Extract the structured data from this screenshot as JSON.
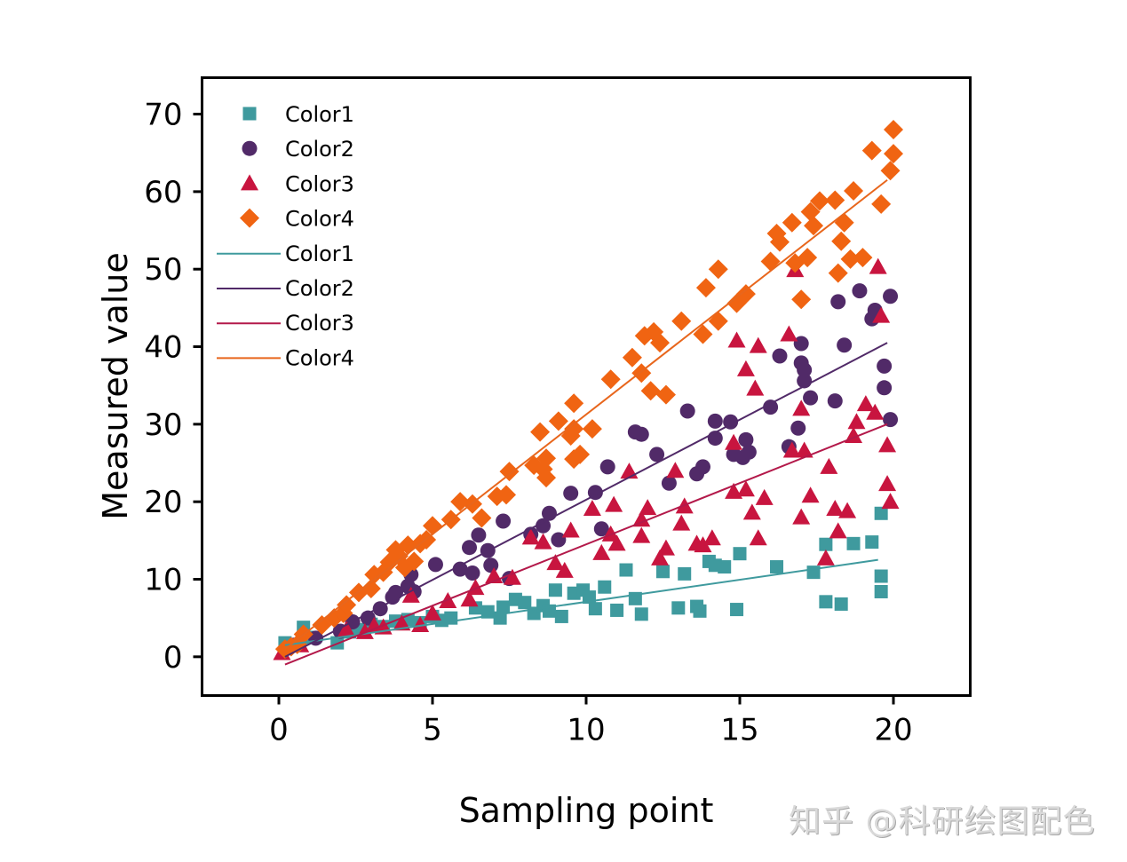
{
  "chart_data": {
    "type": "scatter",
    "title": "",
    "xlabel": "Sampling point",
    "ylabel": "Measured value",
    "xlim": [
      -2.5,
      22.5
    ],
    "ylim": [
      -5,
      74.7
    ],
    "xticks": [
      0,
      5,
      10,
      15,
      20
    ],
    "yticks": [
      0,
      10,
      20,
      30,
      40,
      50,
      60,
      70
    ],
    "grid": false,
    "legend_position": "upper left",
    "legend": [
      {
        "label": "Color1",
        "kind": "marker",
        "marker": "square",
        "color": "#3f9a9e"
      },
      {
        "label": "Color2",
        "kind": "marker",
        "marker": "circle",
        "color": "#512a68"
      },
      {
        "label": "Color3",
        "kind": "marker",
        "marker": "triangle",
        "color": "#c8153f"
      },
      {
        "label": "Color4",
        "kind": "marker",
        "marker": "diamond",
        "color": "#f06412"
      },
      {
        "label": "Color1",
        "kind": "line",
        "color": "#3f9a9e"
      },
      {
        "label": "Color2",
        "kind": "line",
        "color": "#512a68"
      },
      {
        "label": "Color3",
        "kind": "line",
        "color": "#b3194a"
      },
      {
        "label": "Color4",
        "kind": "line",
        "color": "#e8661c"
      }
    ],
    "series": [
      {
        "name": "Color1",
        "marker": "square",
        "color": "#3f9a9e",
        "fit": {
          "x": [
            0.2,
            19.5
          ],
          "y": [
            1.5,
            12.5
          ]
        },
        "points": [
          [
            0.2,
            1.8
          ],
          [
            0.8,
            3.8
          ],
          [
            1.0,
            2.5
          ],
          [
            1.9,
            1.8
          ],
          [
            2.3,
            3.2
          ],
          [
            2.6,
            3.5
          ],
          [
            3.0,
            4.2
          ],
          [
            3.4,
            3.9
          ],
          [
            3.8,
            4.6
          ],
          [
            4.2,
            4.8
          ],
          [
            4.6,
            4.4
          ],
          [
            5.0,
            5.2
          ],
          [
            5.3,
            4.7
          ],
          [
            5.6,
            5.0
          ],
          [
            6.4,
            6.3
          ],
          [
            6.8,
            5.8
          ],
          [
            7.2,
            5.0
          ],
          [
            7.3,
            6.4
          ],
          [
            7.7,
            7.4
          ],
          [
            8.0,
            7.0
          ],
          [
            8.3,
            5.6
          ],
          [
            8.6,
            6.6
          ],
          [
            8.8,
            5.9
          ],
          [
            9.0,
            8.6
          ],
          [
            9.2,
            5.2
          ],
          [
            9.6,
            8.2
          ],
          [
            9.9,
            8.6
          ],
          [
            10.1,
            7.7
          ],
          [
            10.3,
            6.2
          ],
          [
            10.6,
            9.0
          ],
          [
            11.0,
            6.0
          ],
          [
            11.3,
            11.2
          ],
          [
            11.6,
            7.5
          ],
          [
            11.8,
            5.5
          ],
          [
            12.5,
            11.0
          ],
          [
            13.0,
            6.3
          ],
          [
            13.2,
            10.7
          ],
          [
            13.6,
            6.5
          ],
          [
            13.7,
            5.9
          ],
          [
            14.0,
            12.3
          ],
          [
            14.2,
            11.8
          ],
          [
            14.5,
            11.6
          ],
          [
            14.9,
            6.1
          ],
          [
            15.0,
            13.3
          ],
          [
            16.2,
            11.6
          ],
          [
            17.4,
            10.9
          ],
          [
            17.8,
            14.5
          ],
          [
            17.8,
            7.1
          ],
          [
            18.3,
            6.8
          ],
          [
            18.7,
            14.6
          ],
          [
            19.3,
            14.8
          ],
          [
            19.6,
            18.5
          ],
          [
            19.6,
            10.4
          ],
          [
            19.6,
            8.4
          ]
        ]
      },
      {
        "name": "Color2",
        "marker": "circle",
        "color": "#512a68",
        "fit": {
          "x": [
            0.2,
            19.8
          ],
          "y": [
            0.0,
            40.5
          ]
        },
        "points": [
          [
            0.5,
            1.5
          ],
          [
            1.2,
            2.4
          ],
          [
            2.0,
            3.3
          ],
          [
            2.4,
            4.5
          ],
          [
            2.9,
            5.0
          ],
          [
            3.3,
            6.2
          ],
          [
            3.7,
            7.7
          ],
          [
            3.8,
            8.3
          ],
          [
            4.2,
            9.1
          ],
          [
            4.3,
            10.6
          ],
          [
            4.4,
            8.4
          ],
          [
            5.1,
            11.9
          ],
          [
            5.9,
            11.3
          ],
          [
            6.2,
            14.1
          ],
          [
            6.3,
            10.8
          ],
          [
            6.5,
            15.7
          ],
          [
            6.8,
            13.7
          ],
          [
            6.9,
            11.8
          ],
          [
            7.3,
            17.5
          ],
          [
            7.5,
            10.1
          ],
          [
            8.2,
            15.8
          ],
          [
            8.6,
            16.9
          ],
          [
            8.8,
            18.5
          ],
          [
            9.1,
            15.1
          ],
          [
            9.5,
            21.1
          ],
          [
            10.3,
            21.2
          ],
          [
            10.5,
            16.5
          ],
          [
            10.7,
            24.5
          ],
          [
            11.6,
            29.0
          ],
          [
            11.8,
            28.7
          ],
          [
            12.3,
            26.1
          ],
          [
            12.7,
            22.4
          ],
          [
            13.3,
            31.7
          ],
          [
            13.6,
            23.6
          ],
          [
            13.8,
            24.5
          ],
          [
            14.2,
            28.2
          ],
          [
            14.2,
            30.4
          ],
          [
            14.7,
            30.3
          ],
          [
            14.8,
            26.1
          ],
          [
            15.1,
            25.7
          ],
          [
            15.2,
            28.0
          ],
          [
            15.3,
            26.4
          ],
          [
            16.0,
            32.2
          ],
          [
            16.3,
            38.8
          ],
          [
            16.6,
            27.1
          ],
          [
            16.9,
            29.5
          ],
          [
            17.0,
            37.9
          ],
          [
            17.0,
            40.4
          ],
          [
            17.1,
            35.6
          ],
          [
            17.1,
            37.0
          ],
          [
            17.3,
            33.4
          ],
          [
            18.1,
            33.0
          ],
          [
            18.2,
            45.8
          ],
          [
            18.4,
            40.2
          ],
          [
            18.9,
            47.2
          ],
          [
            19.3,
            43.6
          ],
          [
            19.4,
            44.7
          ],
          [
            19.7,
            34.7
          ],
          [
            19.7,
            37.5
          ],
          [
            19.9,
            46.5
          ],
          [
            19.9,
            30.6
          ]
        ]
      },
      {
        "name": "Color3",
        "marker": "triangle",
        "color": "#c8153f",
        "fit": {
          "x": [
            0.2,
            19.8
          ],
          "y": [
            -1.0,
            30.0
          ]
        },
        "points": [
          [
            0.1,
            0.5
          ],
          [
            0.7,
            1.5
          ],
          [
            2.2,
            3.5
          ],
          [
            2.8,
            3.2
          ],
          [
            3.1,
            4.0
          ],
          [
            3.4,
            3.8
          ],
          [
            4.0,
            4.3
          ],
          [
            4.3,
            7.9
          ],
          [
            4.6,
            4.1
          ],
          [
            5.0,
            5.6
          ],
          [
            5.5,
            7.2
          ],
          [
            6.2,
            7.4
          ],
          [
            6.4,
            8.9
          ],
          [
            7.0,
            10.4
          ],
          [
            7.6,
            10.2
          ],
          [
            8.2,
            15.4
          ],
          [
            8.6,
            14.8
          ],
          [
            9.0,
            12.1
          ],
          [
            9.3,
            11.1
          ],
          [
            9.5,
            16.3
          ],
          [
            10.2,
            19.1
          ],
          [
            10.5,
            13.4
          ],
          [
            10.8,
            15.8
          ],
          [
            10.9,
            19.6
          ],
          [
            11.0,
            14.6
          ],
          [
            11.4,
            23.9
          ],
          [
            11.8,
            17.7
          ],
          [
            11.8,
            15.6
          ],
          [
            12.0,
            19.2
          ],
          [
            12.4,
            12.7
          ],
          [
            12.6,
            14.0
          ],
          [
            12.9,
            24.0
          ],
          [
            13.1,
            17.2
          ],
          [
            13.2,
            19.4
          ],
          [
            13.6,
            14.6
          ],
          [
            13.8,
            14.4
          ],
          [
            14.1,
            15.3
          ],
          [
            14.8,
            27.6
          ],
          [
            14.8,
            21.3
          ],
          [
            14.9,
            40.8
          ],
          [
            15.2,
            37.1
          ],
          [
            15.2,
            21.6
          ],
          [
            15.4,
            18.6
          ],
          [
            15.5,
            34.6
          ],
          [
            15.6,
            40.1
          ],
          [
            15.6,
            15.3
          ],
          [
            15.8,
            20.5
          ],
          [
            16.6,
            41.6
          ],
          [
            16.7,
            26.6
          ],
          [
            16.8,
            49.9
          ],
          [
            17.0,
            18.0
          ],
          [
            17.0,
            32.0
          ],
          [
            17.1,
            26.6
          ],
          [
            17.3,
            20.8
          ],
          [
            17.8,
            12.7
          ],
          [
            17.9,
            24.5
          ],
          [
            18.1,
            19.1
          ],
          [
            18.2,
            16.2
          ],
          [
            18.5,
            18.8
          ],
          [
            18.7,
            28.5
          ],
          [
            18.8,
            30.3
          ],
          [
            19.1,
            32.6
          ],
          [
            19.4,
            31.5
          ],
          [
            19.5,
            50.3
          ],
          [
            19.6,
            44.0
          ],
          [
            19.8,
            27.3
          ],
          [
            19.8,
            22.3
          ],
          [
            19.9,
            20.0
          ]
        ]
      },
      {
        "name": "Color4",
        "marker": "diamond",
        "color": "#f06412",
        "fit": {
          "x": [
            0.2,
            19.8
          ],
          "y": [
            1.0,
            61.5
          ]
        },
        "points": [
          [
            0.2,
            1.0
          ],
          [
            0.4,
            1.3
          ],
          [
            0.6,
            1.6
          ],
          [
            0.8,
            2.9
          ],
          [
            1.4,
            4.1
          ],
          [
            1.8,
            5.0
          ],
          [
            2.1,
            5.6
          ],
          [
            2.2,
            6.7
          ],
          [
            2.6,
            8.3
          ],
          [
            3.0,
            8.8
          ],
          [
            3.1,
            10.6
          ],
          [
            3.4,
            10.9
          ],
          [
            3.6,
            12.2
          ],
          [
            3.8,
            13.8
          ],
          [
            3.9,
            13.0
          ],
          [
            4.1,
            11.5
          ],
          [
            4.2,
            14.4
          ],
          [
            4.4,
            12.3
          ],
          [
            4.6,
            14.6
          ],
          [
            4.8,
            15.1
          ],
          [
            5.0,
            16.9
          ],
          [
            5.6,
            17.7
          ],
          [
            5.9,
            20.0
          ],
          [
            6.3,
            19.7
          ],
          [
            6.6,
            17.9
          ],
          [
            7.1,
            20.7
          ],
          [
            7.4,
            20.9
          ],
          [
            7.5,
            23.9
          ],
          [
            8.3,
            24.7
          ],
          [
            8.5,
            29.0
          ],
          [
            8.6,
            24.2
          ],
          [
            8.7,
            25.6
          ],
          [
            8.7,
            23.1
          ],
          [
            9.1,
            30.4
          ],
          [
            9.5,
            28.5
          ],
          [
            9.6,
            32.7
          ],
          [
            9.6,
            29.4
          ],
          [
            9.6,
            25.5
          ],
          [
            9.8,
            26.1
          ],
          [
            10.2,
            29.4
          ],
          [
            10.8,
            35.8
          ],
          [
            11.5,
            38.6
          ],
          [
            11.8,
            36.6
          ],
          [
            11.9,
            41.4
          ],
          [
            12.1,
            34.3
          ],
          [
            12.2,
            41.9
          ],
          [
            12.6,
            33.8
          ],
          [
            12.4,
            40.5
          ],
          [
            13.1,
            43.3
          ],
          [
            13.8,
            41.6
          ],
          [
            13.9,
            47.6
          ],
          [
            14.3,
            43.3
          ],
          [
            14.3,
            50.0
          ],
          [
            14.9,
            45.6
          ],
          [
            15.2,
            46.8
          ],
          [
            16.0,
            51.0
          ],
          [
            16.2,
            54.6
          ],
          [
            16.3,
            53.5
          ],
          [
            16.7,
            56.0
          ],
          [
            16.8,
            50.8
          ],
          [
            17.0,
            46.1
          ],
          [
            17.2,
            51.5
          ],
          [
            17.3,
            57.4
          ],
          [
            17.4,
            55.6
          ],
          [
            17.6,
            58.8
          ],
          [
            18.1,
            58.9
          ],
          [
            18.2,
            49.5
          ],
          [
            18.3,
            53.6
          ],
          [
            18.4,
            56.0
          ],
          [
            18.6,
            51.3
          ],
          [
            18.7,
            60.1
          ],
          [
            19.0,
            51.5
          ],
          [
            19.3,
            65.3
          ],
          [
            19.6,
            58.4
          ],
          [
            19.9,
            62.7
          ],
          [
            20.0,
            64.9
          ],
          [
            20.0,
            68.0
          ]
        ]
      }
    ]
  },
  "watermark": "知乎 @科研绘图配色"
}
